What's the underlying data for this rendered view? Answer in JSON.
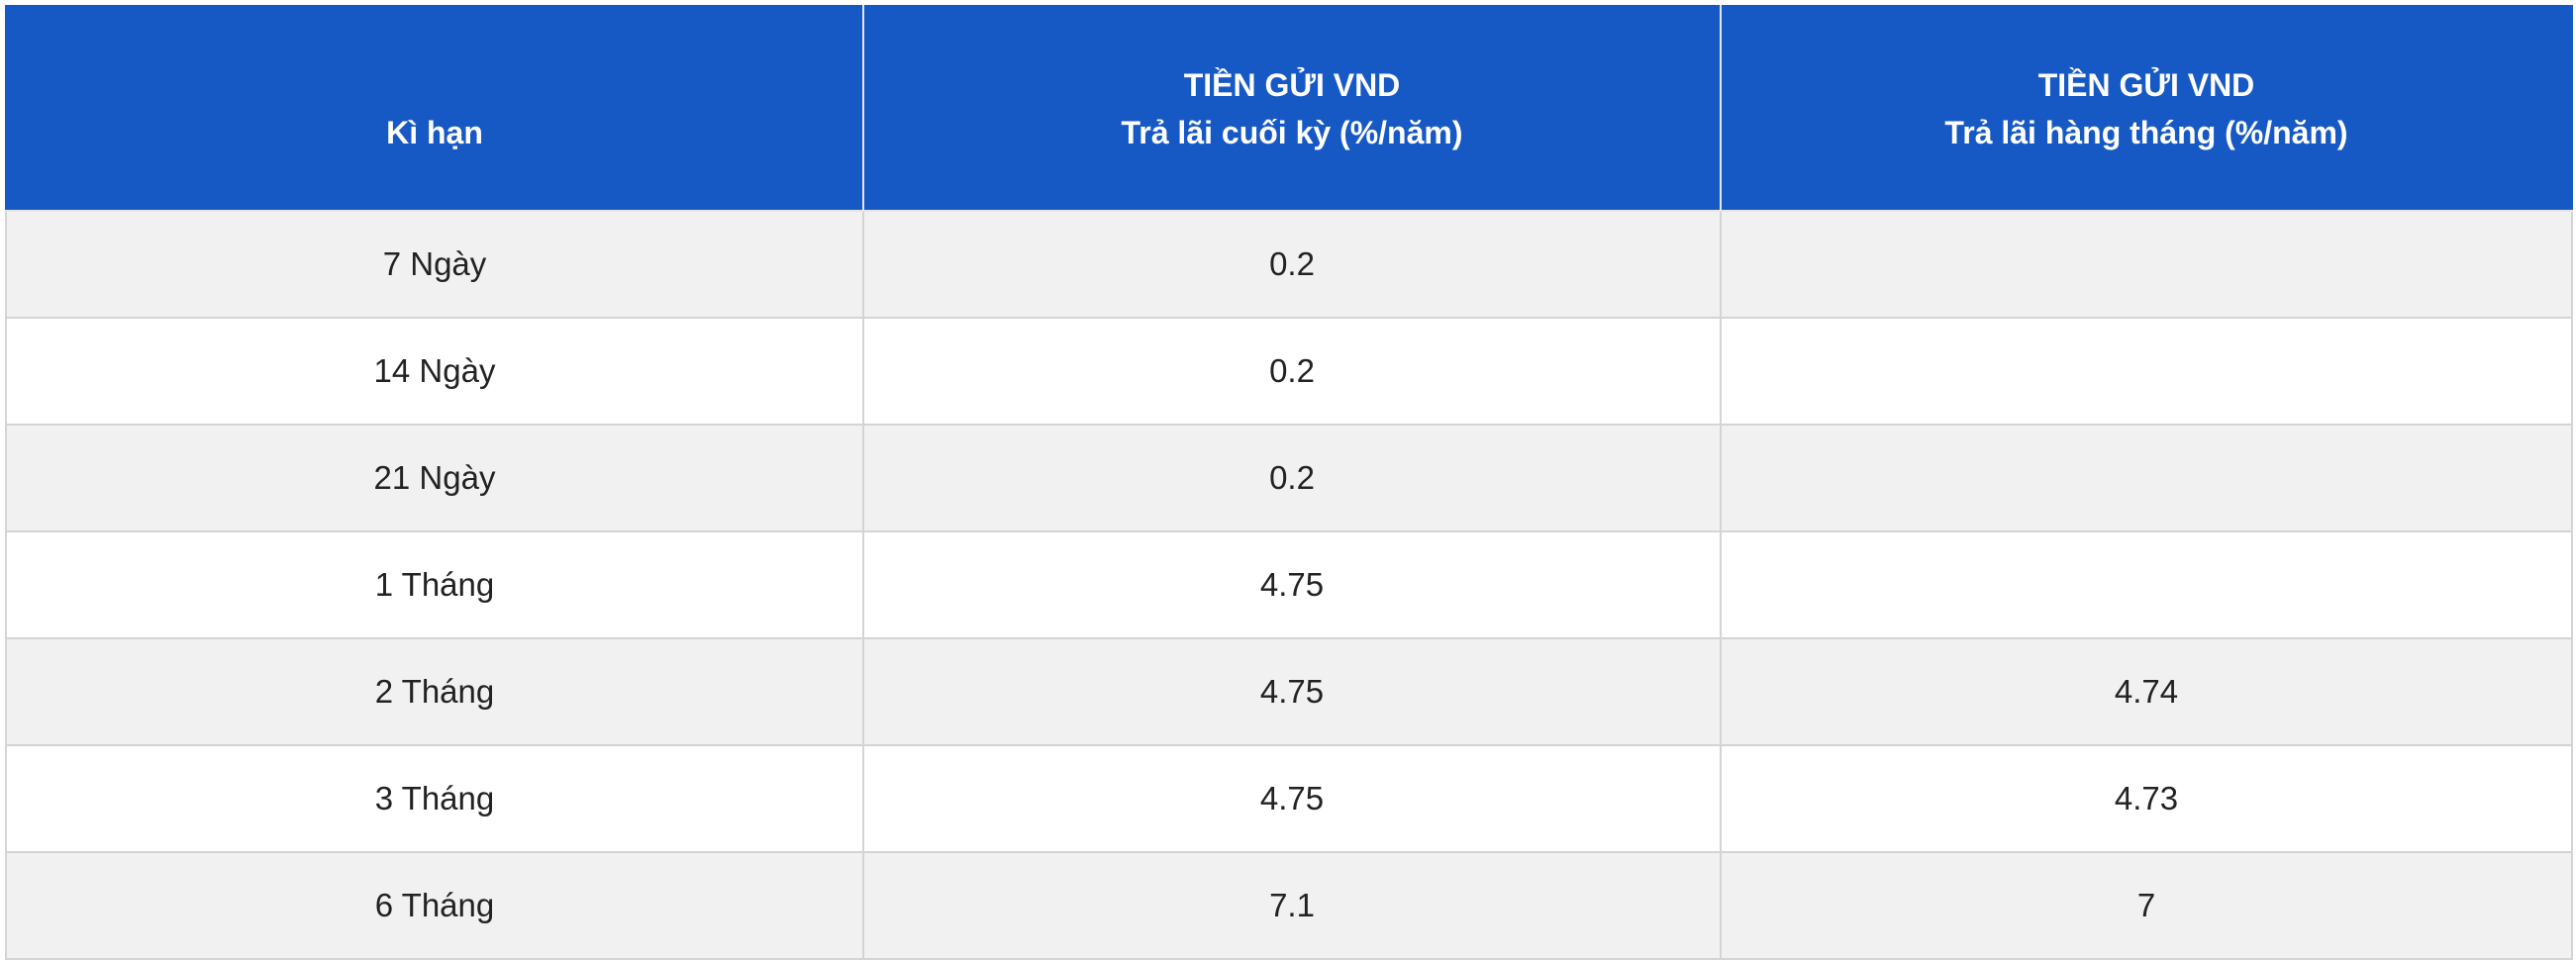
{
  "table": {
    "headers": {
      "term": "Kì hạn",
      "end_of_term": {
        "line1": "TIỀN GỬI VND",
        "line2": "Trả lãi cuối kỳ (%/năm)"
      },
      "monthly": {
        "line1": "TIỀN GỬI VND",
        "line2": "Trả lãi hàng tháng (%/năm)"
      }
    },
    "rows": [
      {
        "term": "7 Ngày",
        "end_of_term": "0.2",
        "monthly": ""
      },
      {
        "term": "14 Ngày",
        "end_of_term": "0.2",
        "monthly": ""
      },
      {
        "term": "21 Ngày",
        "end_of_term": "0.2",
        "monthly": ""
      },
      {
        "term": "1 Tháng",
        "end_of_term": "4.75",
        "monthly": ""
      },
      {
        "term": "2 Tháng",
        "end_of_term": "4.75",
        "monthly": "4.74"
      },
      {
        "term": "3 Tháng",
        "end_of_term": "4.75",
        "monthly": "4.73"
      },
      {
        "term": "6 Tháng",
        "end_of_term": "7.1",
        "monthly": "7"
      }
    ]
  },
  "colors": {
    "header_background": "#1759c4",
    "header_text": "#ffffff",
    "row_shaded": "#f1f1f1",
    "row_plain": "#ffffff",
    "grid_line": "#d4d4d4"
  }
}
